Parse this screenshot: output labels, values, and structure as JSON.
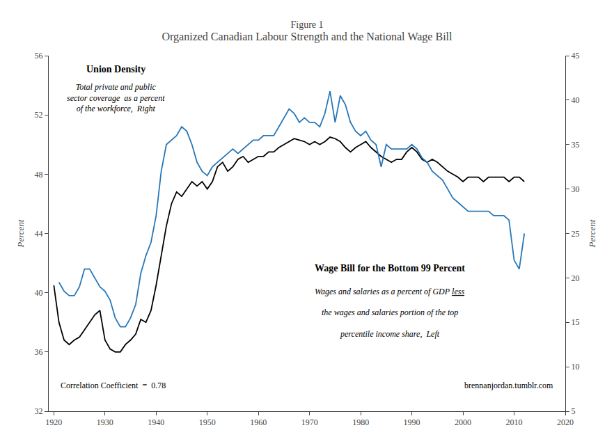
{
  "chart_data": {
    "type": "line",
    "title": "Figure 1",
    "subtitle": "Organized Canadian Labour Strength and the National Wage Bill",
    "ylabel": "Percent",
    "y2label": "Percent",
    "xlim": [
      1919,
      2020
    ],
    "xticks": [
      1920,
      1930,
      1940,
      1950,
      1960,
      1970,
      1980,
      1990,
      2000,
      2010,
      2020
    ],
    "ylim": [
      32,
      56
    ],
    "yticks": [
      32,
      36,
      40,
      44,
      48,
      52,
      56
    ],
    "y2lim": [
      5,
      45
    ],
    "y2ticks": [
      5,
      10,
      15,
      20,
      25,
      30,
      35,
      40,
      45
    ],
    "grid": false,
    "annotations": [
      "Union Density",
      "Total private and public\nsector coverage  as a percent\nof the workforce,  Right",
      "Wage Bill for the Bottom 99 Percent",
      "Wages and salaries as a percent of GDP ",
      "less",
      "the wages and salaries portion of the top",
      "percentile income share,  Left",
      "Correlation Coefficient  =  0.78",
      "brennanjordan.tumblr.com"
    ],
    "series": [
      {
        "color": "#000000",
        "axis": "y",
        "x": [
          1920,
          1921,
          1922,
          1923,
          1924,
          1925,
          1926,
          1927,
          1928,
          1929,
          1930,
          1931,
          1932,
          1933,
          1934,
          1935,
          1936,
          1937,
          1938,
          1939,
          1940,
          1941,
          1942,
          1943,
          1944,
          1945,
          1946,
          1947,
          1948,
          1949,
          1950,
          1951,
          1952,
          1953,
          1954,
          1955,
          1956,
          1957,
          1958,
          1959,
          1960,
          1961,
          1962,
          1963,
          1964,
          1965,
          1966,
          1967,
          1968,
          1969,
          1970,
          1971,
          1972,
          1973,
          1974,
          1975,
          1976,
          1977,
          1978,
          1979,
          1980,
          1981,
          1982,
          1983,
          1984,
          1985,
          1986,
          1987,
          1988,
          1989,
          1990,
          1991,
          1992,
          1993,
          1994,
          1995,
          1996,
          1997,
          1998,
          1999,
          2000,
          2001,
          2002,
          2003,
          2004,
          2005,
          2006,
          2007,
          2008,
          2009,
          2010,
          2011,
          2012
        ],
        "values": [
          40.5,
          38.0,
          36.8,
          36.5,
          36.8,
          37.0,
          37.5,
          38.0,
          38.5,
          38.8,
          36.8,
          36.2,
          36.0,
          36.0,
          36.5,
          36.8,
          37.2,
          38.2,
          38.0,
          38.8,
          40.5,
          42.5,
          44.5,
          46.0,
          46.8,
          46.5,
          47.0,
          47.5,
          47.2,
          47.5,
          47.0,
          47.5,
          48.5,
          48.8,
          48.2,
          48.5,
          49.0,
          49.2,
          48.8,
          49.0,
          49.2,
          49.2,
          49.5,
          49.5,
          49.8,
          50.0,
          50.2,
          50.4,
          50.3,
          50.2,
          50.0,
          50.2,
          50.0,
          50.2,
          50.5,
          50.4,
          50.2,
          49.8,
          49.5,
          49.8,
          50.0,
          50.2,
          49.8,
          49.5,
          49.2,
          49.0,
          48.8,
          49.0,
          49.0,
          49.5,
          49.8,
          49.5,
          49.0,
          48.8,
          49.0,
          48.8,
          48.5,
          48.2,
          48.0,
          47.8,
          47.5,
          47.8,
          47.8,
          47.8,
          47.5,
          47.8,
          47.8,
          47.8,
          47.8,
          47.5,
          47.8,
          47.8,
          47.5
        ]
      },
      {
        "color": "#2777B8",
        "axis": "y2",
        "x": [
          1921,
          1922,
          1923,
          1924,
          1925,
          1926,
          1927,
          1928,
          1929,
          1930,
          1931,
          1932,
          1933,
          1934,
          1935,
          1936,
          1937,
          1938,
          1939,
          1940,
          1941,
          1942,
          1943,
          1944,
          1945,
          1946,
          1947,
          1948,
          1949,
          1950,
          1951,
          1952,
          1953,
          1954,
          1955,
          1956,
          1957,
          1958,
          1959,
          1960,
          1961,
          1962,
          1963,
          1964,
          1965,
          1966,
          1967,
          1968,
          1969,
          1970,
          1971,
          1972,
          1973,
          1974,
          1975,
          1976,
          1977,
          1978,
          1979,
          1980,
          1981,
          1982,
          1983,
          1984,
          1985,
          1986,
          1987,
          1988,
          1989,
          1990,
          1991,
          1992,
          1993,
          1994,
          1995,
          1996,
          1997,
          1998,
          1999,
          2000,
          2001,
          2002,
          2003,
          2004,
          2005,
          2006,
          2007,
          2008,
          2009,
          2010,
          2011,
          2012
        ],
        "values": [
          19.5,
          18.5,
          18.0,
          18.0,
          19.0,
          21.0,
          21.0,
          20.0,
          19.0,
          18.5,
          17.5,
          15.5,
          14.5,
          14.5,
          15.5,
          17.0,
          20.5,
          22.5,
          24.0,
          27.0,
          32.0,
          35.0,
          35.5,
          36.0,
          37.0,
          36.5,
          35.0,
          33.0,
          32.0,
          31.5,
          32.5,
          33.0,
          33.5,
          34.0,
          34.5,
          34.0,
          34.5,
          35.0,
          35.5,
          35.5,
          36.0,
          36.0,
          36.0,
          37.0,
          38.0,
          39.0,
          38.5,
          37.5,
          38.0,
          37.5,
          37.5,
          37.0,
          38.5,
          41.0,
          37.5,
          40.5,
          39.5,
          37.5,
          36.5,
          36.0,
          36.5,
          35.5,
          35.0,
          32.5,
          35.0,
          34.5,
          34.5,
          34.5,
          34.5,
          35.0,
          34.5,
          33.5,
          33.0,
          32.0,
          31.5,
          31.0,
          30.0,
          29.0,
          28.5,
          28.0,
          27.5,
          27.5,
          27.5,
          27.5,
          27.5,
          27.0,
          27.0,
          27.0,
          26.5,
          22.0,
          21.0,
          25.0
        ]
      }
    ]
  }
}
